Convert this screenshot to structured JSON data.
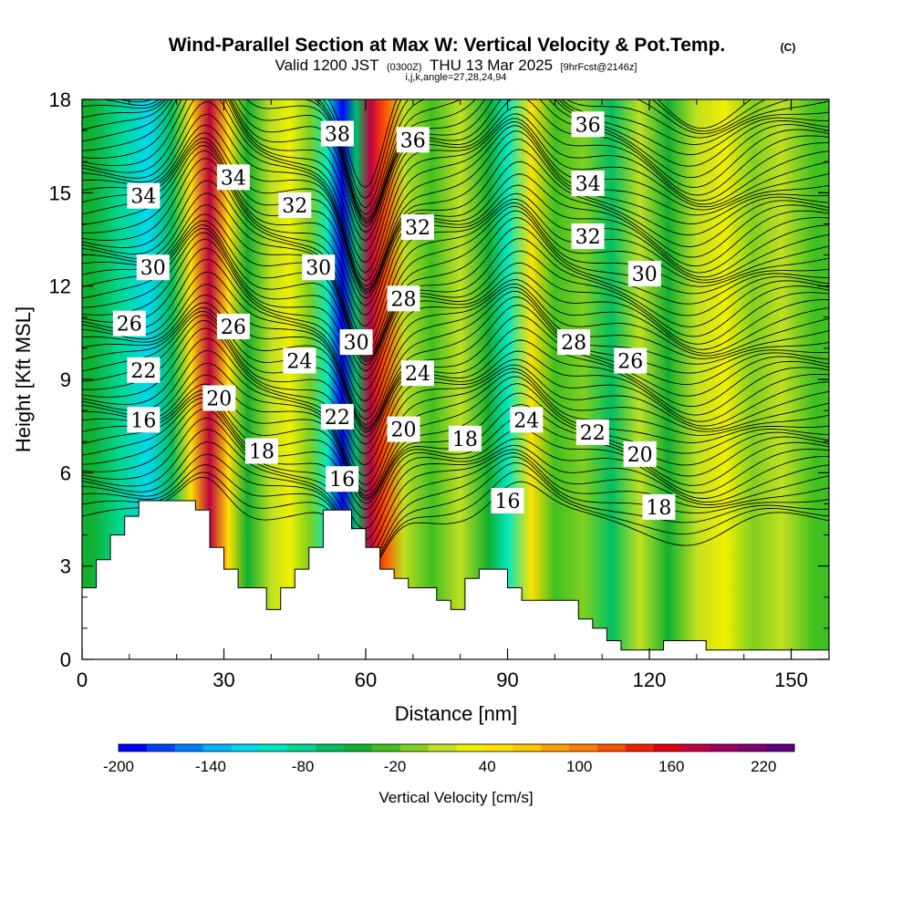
{
  "title": {
    "main": "Wind-Parallel Section at Max W: Vertical Velocity & Pot.Temp.",
    "copyright": "(C)",
    "valid_prefix": "Valid 1200 JST",
    "valid_utc": "(0300Z)",
    "valid_date": "THU 13 Mar 2025",
    "forecast": "[9hrFcst@2146z]",
    "indices": "i,j,k,angle=27,28,24,94"
  },
  "chart_data": {
    "type": "heatmap",
    "xlabel": "Distance [nm]",
    "ylabel": "Height [Kft MSL]",
    "xlim": [
      0,
      158
    ],
    "ylim": [
      0,
      18
    ],
    "x_ticks": [
      0,
      30,
      60,
      90,
      120,
      150
    ],
    "y_ticks": [
      0,
      3,
      6,
      9,
      12,
      15,
      18
    ],
    "x_tick_labels": [
      "0",
      "30",
      "60",
      "90",
      "120",
      "150"
    ],
    "y_tick_labels": [
      "0",
      "3",
      "6",
      "9",
      "12",
      "15",
      "18"
    ],
    "colorbar": {
      "title": "Vertical Velocity [cm/s]",
      "range": [
        -200,
        240
      ],
      "step": 20,
      "tick_values": [
        -200,
        -140,
        -80,
        -20,
        40,
        100,
        160,
        220
      ],
      "tick_labels": [
        "-200",
        "-140",
        "-80",
        "-20",
        "40",
        "100",
        "160",
        "220"
      ],
      "colors": [
        "#0000ff",
        "#0040ff",
        "#0080ff",
        "#00b4ff",
        "#00d8f0",
        "#00e8c0",
        "#00d890",
        "#00c060",
        "#10b030",
        "#40c020",
        "#80d020",
        "#c0e020",
        "#f0f000",
        "#ffe000",
        "#ffc800",
        "#ffa000",
        "#ff8000",
        "#ff5000",
        "#f02000",
        "#e00010",
        "#c00040",
        "#a00060",
        "#800070",
        "#600080"
      ]
    },
    "vertical_velocity_bands": [
      {
        "x": 2,
        "w": -40
      },
      {
        "x": 8,
        "w": -70
      },
      {
        "x": 14,
        "w": -110
      },
      {
        "x": 19,
        "w": -50
      },
      {
        "x": 23,
        "w": 60
      },
      {
        "x": 27,
        "w": 200
      },
      {
        "x": 31,
        "w": 70
      },
      {
        "x": 35,
        "w": -40
      },
      {
        "x": 40,
        "w": 20
      },
      {
        "x": 44,
        "w": 50
      },
      {
        "x": 48,
        "w": 10
      },
      {
        "x": 52,
        "w": -100
      },
      {
        "x": 55,
        "w": -200
      },
      {
        "x": 58,
        "w": -60
      },
      {
        "x": 61,
        "w": 210
      },
      {
        "x": 64,
        "w": 140
      },
      {
        "x": 68,
        "w": 20
      },
      {
        "x": 74,
        "w": -10
      },
      {
        "x": 80,
        "w": 20
      },
      {
        "x": 86,
        "w": -40
      },
      {
        "x": 90,
        "w": -90
      },
      {
        "x": 95,
        "w": 60
      },
      {
        "x": 100,
        "w": -20
      },
      {
        "x": 106,
        "w": 10
      },
      {
        "x": 112,
        "w": -50
      },
      {
        "x": 118,
        "w": 30
      },
      {
        "x": 124,
        "w": -30
      },
      {
        "x": 130,
        "w": 20
      },
      {
        "x": 136,
        "w": 50
      },
      {
        "x": 142,
        "w": 0
      },
      {
        "x": 148,
        "w": 30
      },
      {
        "x": 155,
        "w": -20
      }
    ],
    "terrain_kft": [
      [
        0,
        2.3
      ],
      [
        3,
        2.3
      ],
      [
        3,
        3.2
      ],
      [
        6,
        3.2
      ],
      [
        6,
        4.0
      ],
      [
        9,
        4.0
      ],
      [
        9,
        4.6
      ],
      [
        12,
        4.6
      ],
      [
        12,
        5.1
      ],
      [
        24,
        5.1
      ],
      [
        24,
        4.8
      ],
      [
        27,
        4.8
      ],
      [
        27,
        3.6
      ],
      [
        30,
        3.6
      ],
      [
        30,
        2.9
      ],
      [
        33,
        2.9
      ],
      [
        33,
        2.3
      ],
      [
        39,
        2.3
      ],
      [
        39,
        1.6
      ],
      [
        42,
        1.6
      ],
      [
        42,
        2.3
      ],
      [
        45,
        2.3
      ],
      [
        45,
        2.9
      ],
      [
        48,
        2.9
      ],
      [
        48,
        3.6
      ],
      [
        51,
        3.6
      ],
      [
        51,
        4.8
      ],
      [
        57,
        4.8
      ],
      [
        57,
        4.2
      ],
      [
        60,
        4.2
      ],
      [
        60,
        3.6
      ],
      [
        63,
        3.6
      ],
      [
        63,
        2.9
      ],
      [
        66,
        2.9
      ],
      [
        66,
        2.6
      ],
      [
        69,
        2.6
      ],
      [
        69,
        2.3
      ],
      [
        75,
        2.3
      ],
      [
        75,
        1.9
      ],
      [
        78,
        1.9
      ],
      [
        78,
        1.6
      ],
      [
        81,
        1.6
      ],
      [
        81,
        2.6
      ],
      [
        84,
        2.6
      ],
      [
        84,
        2.9
      ],
      [
        90,
        2.9
      ],
      [
        90,
        2.3
      ],
      [
        93,
        2.3
      ],
      [
        93,
        1.9
      ],
      [
        105,
        1.9
      ],
      [
        105,
        1.3
      ],
      [
        108,
        1.3
      ],
      [
        108,
        1.0
      ],
      [
        111,
        1.0
      ],
      [
        111,
        0.6
      ],
      [
        114,
        0.6
      ],
      [
        114,
        0.3
      ],
      [
        123,
        0.3
      ],
      [
        123,
        0.6
      ],
      [
        132,
        0.6
      ],
      [
        132,
        0.3
      ],
      [
        158,
        0.3
      ]
    ],
    "isentrope_labels": [
      {
        "text": "38",
        "x": 54,
        "y": 16.9
      },
      {
        "text": "36",
        "x": 70,
        "y": 16.7
      },
      {
        "text": "36",
        "x": 107,
        "y": 17.2
      },
      {
        "text": "34",
        "x": 13,
        "y": 14.9
      },
      {
        "text": "34",
        "x": 32,
        "y": 15.5
      },
      {
        "text": "34",
        "x": 107,
        "y": 15.3
      },
      {
        "text": "32",
        "x": 45,
        "y": 14.6
      },
      {
        "text": "32",
        "x": 71,
        "y": 13.9
      },
      {
        "text": "32",
        "x": 107,
        "y": 13.6
      },
      {
        "text": "30",
        "x": 15,
        "y": 12.6
      },
      {
        "text": "30",
        "x": 50,
        "y": 12.6
      },
      {
        "text": "30",
        "x": 119,
        "y": 12.4
      },
      {
        "text": "28",
        "x": 68,
        "y": 11.6
      },
      {
        "text": "28",
        "x": 104,
        "y": 10.2
      },
      {
        "text": "26",
        "x": 10,
        "y": 10.8
      },
      {
        "text": "26",
        "x": 32,
        "y": 10.7
      },
      {
        "text": "26",
        "x": 116,
        "y": 9.6
      },
      {
        "text": "30",
        "x": 58,
        "y": 10.2
      },
      {
        "text": "24",
        "x": 46,
        "y": 9.6
      },
      {
        "text": "24",
        "x": 71,
        "y": 9.2
      },
      {
        "text": "24",
        "x": 94,
        "y": 7.7
      },
      {
        "text": "22",
        "x": 13,
        "y": 9.3
      },
      {
        "text": "22",
        "x": 54,
        "y": 7.8
      },
      {
        "text": "22",
        "x": 108,
        "y": 7.3
      },
      {
        "text": "20",
        "x": 29,
        "y": 8.4
      },
      {
        "text": "20",
        "x": 68,
        "y": 7.4
      },
      {
        "text": "20",
        "x": 118,
        "y": 6.6
      },
      {
        "text": "18",
        "x": 38,
        "y": 6.7
      },
      {
        "text": "18",
        "x": 81,
        "y": 7.1
      },
      {
        "text": "18",
        "x": 122,
        "y": 4.9
      },
      {
        "text": "16",
        "x": 13,
        "y": 7.7
      },
      {
        "text": "16",
        "x": 55,
        "y": 5.8
      },
      {
        "text": "16",
        "x": 90,
        "y": 5.1
      }
    ]
  }
}
